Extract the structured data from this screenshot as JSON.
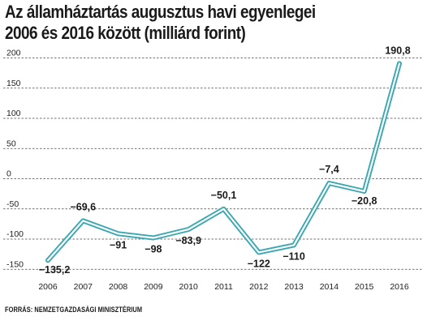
{
  "title_line1": "Az államháztartás augusztus havi egyenlegei",
  "title_line2": "2006 és 2016 között (milliárd forint)",
  "source": "FORRÁS: NEMZETGAZDASÁGI MINISZTÉRIUM",
  "colors": {
    "line": "#3aa8b2",
    "grid": "#444444",
    "background": "#ffffff"
  },
  "chart_data": {
    "type": "line",
    "x": [
      "2006",
      "2007",
      "2008",
      "2009",
      "2010",
      "2011",
      "2012",
      "2013",
      "2014",
      "2015",
      "2016"
    ],
    "values": [
      -135.2,
      -69.6,
      -91,
      -98,
      -83.9,
      -50.1,
      -122,
      -110,
      -7.4,
      -20.8,
      190.8
    ],
    "value_labels": [
      "−135,2",
      "−69,6",
      "−91",
      "−98",
      "−83,9",
      "−50,1",
      "−122",
      "−110",
      "−7,4",
      "−20,8",
      "190,8"
    ],
    "yticks": [
      200,
      150,
      100,
      50,
      0,
      -50,
      -100,
      -150
    ],
    "ytick_labels": [
      "200",
      "150",
      "100",
      "50",
      "0",
      "-50",
      "-100",
      "-150"
    ],
    "ylim": [
      -160,
      205
    ],
    "grid": true
  }
}
